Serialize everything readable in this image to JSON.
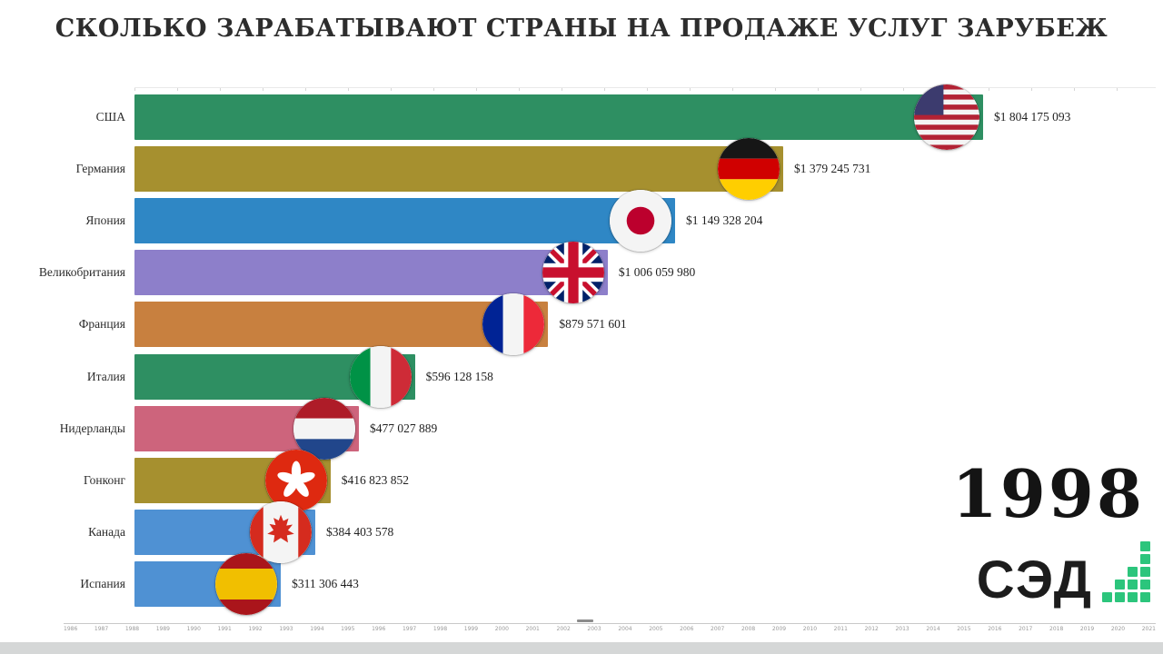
{
  "title": "СКОЛЬКО ЗАРАБАТЫВАЮТ СТРАНЫ НА ПРОДАЖЕ УСЛУГ ЗАРУБЕЖ",
  "year_display": "1998",
  "logo_text": "СЭД",
  "logo_accent_color": "#2cc57c",
  "chart_data": {
    "type": "bar",
    "orientation": "horizontal",
    "title": "СКОЛЬКО ЗАРАБАТЫВАЮТ СТРАНЫ НА ПРОДАЖЕ УСЛУГ ЗАРУБЕЖ",
    "year": "1998",
    "unit": "USD",
    "legend": "none",
    "grid": "off",
    "xlim": [
      0,
      1850000000
    ],
    "categories": [
      "США",
      "Германия",
      "Япония",
      "Великобритания",
      "Франция",
      "Италия",
      "Нидерланды",
      "Гонконг",
      "Канада",
      "Испания"
    ],
    "values": [
      1804175093,
      1379245731,
      1149328204,
      1006059980,
      879571601,
      596128158,
      477027889,
      416823852,
      384403578,
      311306443
    ],
    "value_labels": [
      "$1 804 175 093",
      "$1 379 245 731",
      "$1 149 328 204",
      "$1 006 059 980",
      "$879 571 601",
      "$596 128 158",
      "$477 027 889",
      "$416 823 852",
      "$384 403 578",
      "$311 306 443"
    ],
    "bar_colors": [
      "#2e8f62",
      "#a6902f",
      "#2f87c5",
      "#8d7fca",
      "#c8803f",
      "#2e8f62",
      "#cd647c",
      "#a6902f",
      "#4f91d3",
      "#4f91d3"
    ],
    "flag_icons": [
      "usa-flag-icon",
      "germany-flag-icon",
      "japan-flag-icon",
      "uk-flag-icon",
      "france-flag-icon",
      "italy-flag-icon",
      "netherlands-flag-icon",
      "hongkong-flag-icon",
      "canada-flag-icon",
      "spain-flag-icon"
    ],
    "flag_codes": [
      "us",
      "de",
      "jp",
      "gb",
      "fr",
      "it",
      "nl",
      "hk",
      "ca",
      "es"
    ],
    "timeline_years": [
      "1986",
      "1987",
      "1988",
      "1989",
      "1990",
      "1991",
      "1992",
      "1993",
      "1994",
      "1995",
      "1996",
      "1997",
      "1998",
      "1999",
      "2000",
      "2001",
      "2002",
      "2003",
      "2004",
      "2005",
      "2006",
      "2007",
      "2008",
      "2009",
      "2010",
      "2011",
      "2012",
      "2013",
      "2014",
      "2015",
      "2016",
      "2017",
      "2018",
      "2019",
      "2020",
      "2021"
    ]
  }
}
